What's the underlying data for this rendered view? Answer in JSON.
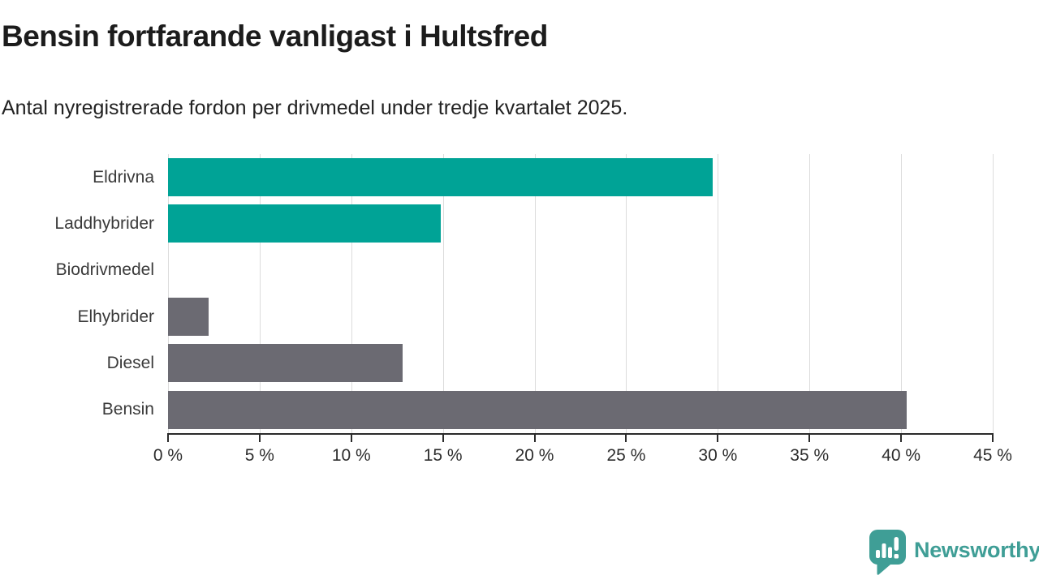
{
  "chart_data": {
    "type": "bar",
    "orientation": "horizontal",
    "title": "Bensin fortfarande vanligast i Hultsfred",
    "subtitle": "Antal nyregistrerade fordon per drivmedel under tredje kvartalet 2025.",
    "categories": [
      "Eldrivna",
      "Laddhybrider",
      "Biodrivmedel",
      "Elhybrider",
      "Diesel",
      "Bensin"
    ],
    "values": [
      29.7,
      14.9,
      0,
      2.2,
      12.8,
      40.3
    ],
    "value_unit": "%",
    "bar_colors": [
      "#00a396",
      "#00a396",
      "#00a396",
      "#6b6a72",
      "#6b6a72",
      "#6b6a72"
    ],
    "xlim": [
      0,
      45
    ],
    "xticks": [
      0,
      5,
      10,
      15,
      20,
      25,
      30,
      35,
      40,
      45
    ],
    "xtick_labels": [
      "0 %",
      "5 %",
      "10 %",
      "15 %",
      "20 %",
      "25 %",
      "30 %",
      "35 %",
      "40 %",
      "45 %"
    ],
    "xlabel": "",
    "ylabel": "",
    "grid": "vertical",
    "legend": "none",
    "accent_teal": "#00a396",
    "neutral_gray": "#6b6a72",
    "gridline_color": "#dcdcdc",
    "axis_color": "#2b2b2b"
  },
  "branding": {
    "logo_text": "Newsworthy",
    "logo_color": "#3f9e96",
    "logo_icon": "speech-bubble-bar-chart-icon"
  }
}
